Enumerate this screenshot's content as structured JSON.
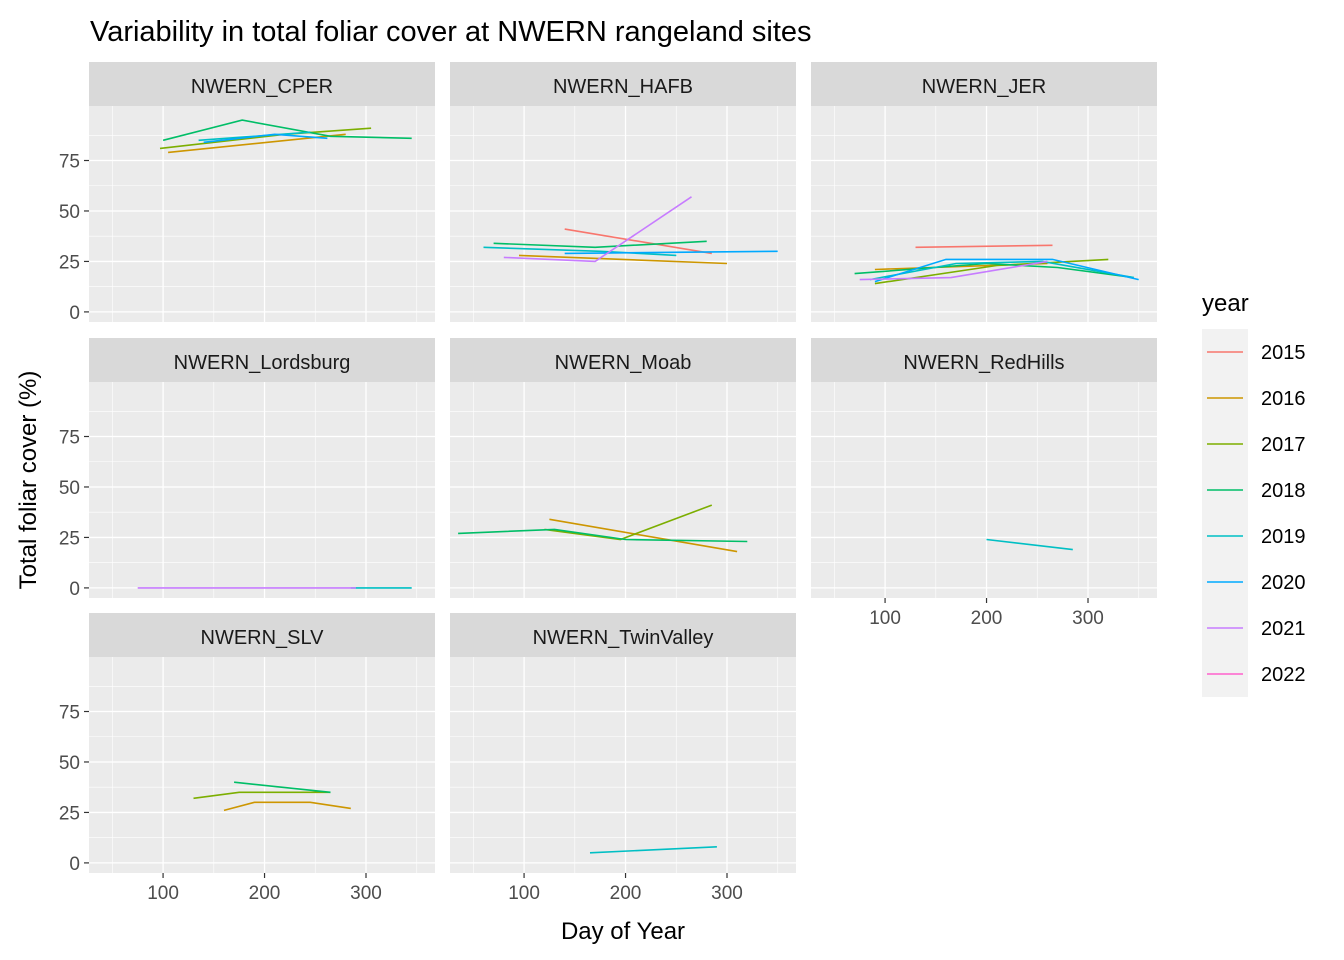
{
  "chart_data": {
    "type": "line",
    "title": "Variability in total foliar cover at NWERN rangeland sites",
    "xlabel": "Day of Year",
    "ylabel": "Total foliar cover (%)",
    "xlim": [
      27,
      368
    ],
    "ylim": [
      -5,
      102
    ],
    "x_ticks": [
      100,
      200,
      300
    ],
    "y_ticks": [
      0,
      25,
      50,
      75
    ],
    "grid": true,
    "legend": {
      "title": "year",
      "position": "right",
      "entries": [
        {
          "label": "2015",
          "color": "#F8766D"
        },
        {
          "label": "2016",
          "color": "#CD9600"
        },
        {
          "label": "2017",
          "color": "#7CAE00"
        },
        {
          "label": "2018",
          "color": "#00BE67"
        },
        {
          "label": "2019",
          "color": "#00BFC4"
        },
        {
          "label": "2020",
          "color": "#00A9FF"
        },
        {
          "label": "2021",
          "color": "#C77CFF"
        },
        {
          "label": "2022",
          "color": "#FF61CC"
        }
      ]
    },
    "panels": [
      {
        "name": "NWERN_CPER",
        "series": [
          {
            "year": "2016",
            "x": [
              105,
              280
            ],
            "y": [
              79,
              88
            ]
          },
          {
            "year": "2017",
            "x": [
              97,
              220,
              305
            ],
            "y": [
              81,
              88,
              91
            ]
          },
          {
            "year": "2018",
            "x": [
              100,
              178,
              265,
              345
            ],
            "y": [
              85,
              95,
              87,
              86
            ]
          },
          {
            "year": "2019",
            "x": [
              135,
              245
            ],
            "y": [
              85,
              89
            ]
          },
          {
            "year": "2020",
            "x": [
              140,
              210,
              262
            ],
            "y": [
              84,
              88,
              86
            ]
          }
        ]
      },
      {
        "name": "NWERN_HAFB",
        "series": [
          {
            "year": "2015",
            "x": [
              140,
              285
            ],
            "y": [
              41,
              29
            ]
          },
          {
            "year": "2016",
            "x": [
              95,
              300
            ],
            "y": [
              28,
              24
            ]
          },
          {
            "year": "2018",
            "x": [
              70,
              170,
              280
            ],
            "y": [
              34,
              32,
              35
            ]
          },
          {
            "year": "2019",
            "x": [
              60,
              175,
              250
            ],
            "y": [
              32,
              30,
              28
            ]
          },
          {
            "year": "2020",
            "x": [
              140,
              350
            ],
            "y": [
              29,
              30
            ]
          },
          {
            "year": "2021",
            "x": [
              80,
              170,
              265
            ],
            "y": [
              27,
              25,
              57
            ]
          }
        ]
      },
      {
        "name": "NWERN_JER",
        "series": [
          {
            "year": "2015",
            "x": [
              130,
              265
            ],
            "y": [
              32,
              33
            ]
          },
          {
            "year": "2016",
            "x": [
              90,
              260
            ],
            "y": [
              21,
              24
            ]
          },
          {
            "year": "2017",
            "x": [
              90,
              210,
              320
            ],
            "y": [
              14,
              23,
              26
            ]
          },
          {
            "year": "2018",
            "x": [
              70,
              200,
              270,
              345
            ],
            "y": [
              19,
              24,
              22,
              17
            ]
          },
          {
            "year": "2019",
            "x": [
              85,
              170,
              255,
              345
            ],
            "y": [
              16,
              24,
              25,
              17
            ]
          },
          {
            "year": "2020",
            "x": [
              90,
              160,
              265,
              350
            ],
            "y": [
              15,
              26,
              26,
              16
            ]
          },
          {
            "year": "2021",
            "x": [
              75,
              165,
              260
            ],
            "y": [
              16,
              17,
              25
            ]
          }
        ]
      },
      {
        "name": "NWERN_Lordsburg",
        "series": [
          {
            "year": "2019",
            "x": [
              285,
              345
            ],
            "y": [
              0,
              0
            ]
          },
          {
            "year": "2021",
            "x": [
              75,
              290
            ],
            "y": [
              0,
              0
            ]
          }
        ]
      },
      {
        "name": "NWERN_Moab",
        "series": [
          {
            "year": "2016",
            "x": [
              125,
              310
            ],
            "y": [
              34,
              18
            ]
          },
          {
            "year": "2017",
            "x": [
              120,
              195,
              285
            ],
            "y": [
              29,
              24,
              41
            ]
          },
          {
            "year": "2018",
            "x": [
              35,
              130,
              200,
              320
            ],
            "y": [
              27,
              29,
              24,
              23
            ]
          }
        ]
      },
      {
        "name": "NWERN_RedHills",
        "series": [
          {
            "year": "2019",
            "x": [
              200,
              285
            ],
            "y": [
              24,
              19
            ]
          }
        ]
      },
      {
        "name": "NWERN_SLV",
        "series": [
          {
            "year": "2016",
            "x": [
              160,
              190,
              245,
              285
            ],
            "y": [
              26,
              30,
              30,
              27
            ]
          },
          {
            "year": "2017",
            "x": [
              130,
              175,
              265
            ],
            "y": [
              32,
              35,
              35
            ]
          },
          {
            "year": "2018",
            "x": [
              170,
              265
            ],
            "y": [
              40,
              35
            ]
          }
        ]
      },
      {
        "name": "NWERN_TwinValley",
        "series": [
          {
            "year": "2019",
            "x": [
              165,
              290
            ],
            "y": [
              5,
              8
            ]
          }
        ]
      }
    ]
  }
}
